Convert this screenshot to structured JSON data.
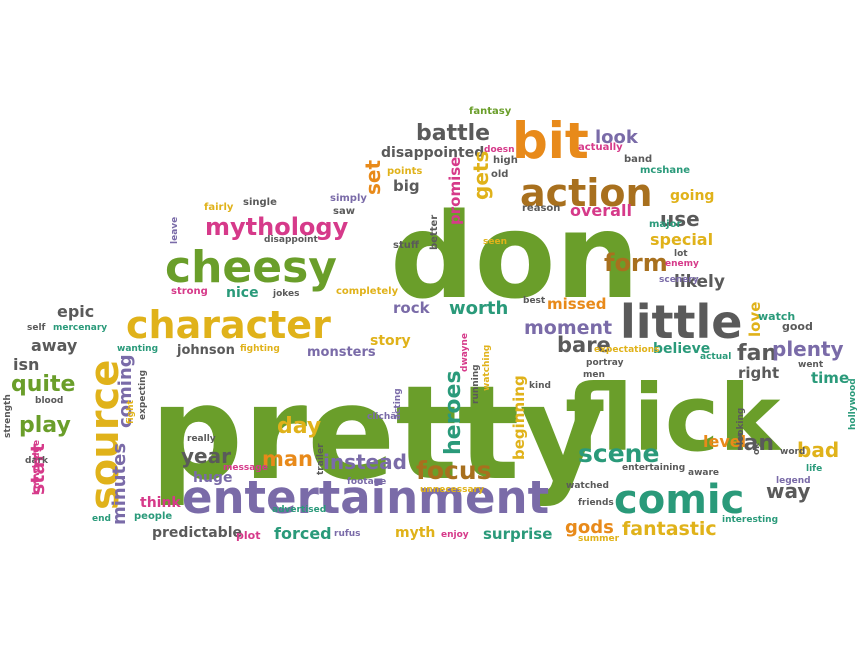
{
  "palette": {
    "green": "#6a9e2a",
    "purple": "#7a6ba8",
    "orange": "#e88a1a",
    "brown": "#a8701e",
    "gray": "#5a5a5a",
    "magenta": "#d63a8a",
    "yellow": "#e0b21a",
    "teal": "#2a9a7a",
    "red": "#d44a1a"
  },
  "words": [
    {
      "text": "pretty",
      "color": "green"
    },
    {
      "text": "flick",
      "color": "green"
    },
    {
      "text": "don",
      "color": "green"
    },
    {
      "text": "entertainment",
      "color": "purple"
    },
    {
      "text": "character",
      "color": "yellow"
    },
    {
      "text": "little",
      "color": "gray"
    },
    {
      "text": "comic",
      "color": "teal"
    },
    {
      "text": "cheesy",
      "color": "green"
    },
    {
      "text": "source",
      "color": "yellow"
    },
    {
      "text": "action",
      "color": "brown"
    },
    {
      "text": "bit",
      "color": "orange"
    },
    {
      "text": "mythology",
      "color": "magenta"
    },
    {
      "text": "battle",
      "color": "gray"
    },
    {
      "text": "disappointed",
      "color": "gray"
    },
    {
      "text": "form",
      "color": "brown"
    },
    {
      "text": "use",
      "color": "gray"
    },
    {
      "text": "special",
      "color": "yellow"
    },
    {
      "text": "likely",
      "color": "gray"
    },
    {
      "text": "worth",
      "color": "teal"
    },
    {
      "text": "rock",
      "color": "purple"
    },
    {
      "text": "moment",
      "color": "purple"
    },
    {
      "text": "bare",
      "color": "gray"
    },
    {
      "text": "heroes",
      "color": "teal"
    },
    {
      "text": "beginning",
      "color": "yellow"
    },
    {
      "text": "scene",
      "color": "teal"
    },
    {
      "text": "focus",
      "color": "brown"
    },
    {
      "text": "instead",
      "color": "purple"
    },
    {
      "text": "man",
      "color": "orange"
    },
    {
      "text": "day",
      "color": "yellow"
    },
    {
      "text": "year",
      "color": "gray"
    },
    {
      "text": "minutes",
      "color": "purple"
    },
    {
      "text": "coming",
      "color": "purple"
    },
    {
      "text": "play",
      "color": "green"
    },
    {
      "text": "quite",
      "color": "green"
    },
    {
      "text": "start",
      "color": "magenta"
    },
    {
      "text": "away",
      "color": "gray"
    },
    {
      "text": "isn",
      "color": "gray"
    },
    {
      "text": "epic",
      "color": "gray"
    },
    {
      "text": "gods",
      "color": "orange"
    },
    {
      "text": "fantastic",
      "color": "yellow"
    },
    {
      "text": "surprise",
      "color": "teal"
    },
    {
      "text": "forced",
      "color": "teal"
    },
    {
      "text": "predictable",
      "color": "gray"
    },
    {
      "text": "fan",
      "color": "gray"
    },
    {
      "text": "plenty",
      "color": "purple"
    },
    {
      "text": "ian",
      "color": "gray"
    },
    {
      "text": "way",
      "color": "gray"
    },
    {
      "text": "bad",
      "color": "yellow"
    },
    {
      "text": "time",
      "color": "teal"
    },
    {
      "text": "right",
      "color": "gray"
    },
    {
      "text": "love",
      "color": "yellow"
    },
    {
      "text": "watch",
      "color": "teal"
    },
    {
      "text": "good",
      "color": "gray"
    },
    {
      "text": "believe",
      "color": "teal"
    },
    {
      "text": "level",
      "color": "orange"
    },
    {
      "text": "gets",
      "color": "yellow"
    },
    {
      "text": "set",
      "color": "orange"
    },
    {
      "text": "promise",
      "color": "magenta"
    },
    {
      "text": "overall",
      "color": "magenta"
    },
    {
      "text": "look",
      "color": "purple"
    },
    {
      "text": "going",
      "color": "yellow"
    },
    {
      "text": "big",
      "color": "gray"
    },
    {
      "text": "missed",
      "color": "orange"
    },
    {
      "text": "story",
      "color": "yellow"
    },
    {
      "text": "monsters",
      "color": "purple"
    },
    {
      "text": "johnson",
      "color": "gray"
    },
    {
      "text": "nice",
      "color": "teal"
    },
    {
      "text": "think",
      "color": "magenta"
    },
    {
      "text": "huge",
      "color": "purple"
    },
    {
      "text": "myth",
      "color": "yellow"
    },
    {
      "text": "plot",
      "color": "magenta"
    },
    {
      "text": "people",
      "color": "teal"
    },
    {
      "text": "strong",
      "color": "magenta"
    },
    {
      "text": "fairly",
      "color": "yellow"
    },
    {
      "text": "single",
      "color": "gray"
    },
    {
      "text": "simply",
      "color": "purple"
    },
    {
      "text": "saw",
      "color": "gray"
    },
    {
      "text": "points",
      "color": "yellow"
    },
    {
      "text": "better",
      "color": "gray"
    },
    {
      "text": "reason",
      "color": "gray"
    },
    {
      "text": "major",
      "color": "teal"
    },
    {
      "text": "actually",
      "color": "magenta"
    },
    {
      "text": "band",
      "color": "gray"
    },
    {
      "text": "mcshane",
      "color": "teal"
    },
    {
      "text": "fantasy",
      "color": "green"
    },
    {
      "text": "high",
      "color": "gray"
    },
    {
      "text": "old",
      "color": "gray"
    },
    {
      "text": "doesn",
      "color": "magenta"
    },
    {
      "text": "lot",
      "color": "gray"
    },
    {
      "text": "enemy",
      "color": "magenta"
    },
    {
      "text": "scenery",
      "color": "purple"
    },
    {
      "text": "stuff",
      "color": "gray"
    },
    {
      "text": "seen",
      "color": "yellow"
    },
    {
      "text": "best",
      "color": "gray"
    },
    {
      "text": "completely",
      "color": "yellow"
    },
    {
      "text": "jokes",
      "color": "gray"
    },
    {
      "text": "disappoint",
      "color": "gray"
    },
    {
      "text": "leave",
      "color": "purple"
    },
    {
      "text": "mercenary",
      "color": "teal"
    },
    {
      "text": "self",
      "color": "gray"
    },
    {
      "text": "wanting",
      "color": "teal"
    },
    {
      "text": "fighting",
      "color": "yellow"
    },
    {
      "text": "blood",
      "color": "gray"
    },
    {
      "text": "strength",
      "color": "gray"
    },
    {
      "text": "dark",
      "color": "gray"
    },
    {
      "text": "knowledge",
      "color": "magenta"
    },
    {
      "text": "end",
      "color": "teal"
    },
    {
      "text": "really",
      "color": "gray"
    },
    {
      "text": "message",
      "color": "magenta"
    },
    {
      "text": "trailer",
      "color": "gray"
    },
    {
      "text": "fight",
      "color": "yellow"
    },
    {
      "text": "expecting",
      "color": "gray"
    },
    {
      "text": "advertised",
      "color": "teal"
    },
    {
      "text": "footage",
      "color": "purple"
    },
    {
      "text": "rufus",
      "color": "purple"
    },
    {
      "text": "clichã",
      "color": "purple"
    },
    {
      "text": "acting",
      "color": "purple"
    },
    {
      "text": "enjoy",
      "color": "magenta"
    },
    {
      "text": "unnecessary",
      "color": "yellow"
    },
    {
      "text": "dwayne",
      "color": "magenta"
    },
    {
      "text": "watching",
      "color": "yellow"
    },
    {
      "text": "running",
      "color": "gray"
    },
    {
      "text": "expectations",
      "color": "yellow"
    },
    {
      "text": "portray",
      "color": "gray"
    },
    {
      "text": "men",
      "color": "gray"
    },
    {
      "text": "kind",
      "color": "gray"
    },
    {
      "text": "watched",
      "color": "gray"
    },
    {
      "text": "friends",
      "color": "gray"
    },
    {
      "text": "summer",
      "color": "yellow"
    },
    {
      "text": "entertaining",
      "color": "gray"
    },
    {
      "text": "aware",
      "color": "gray"
    },
    {
      "text": "looking",
      "color": "gray"
    },
    {
      "text": "ok",
      "color": "gray"
    },
    {
      "text": "actual",
      "color": "teal"
    },
    {
      "text": "went",
      "color": "gray"
    },
    {
      "text": "word",
      "color": "gray"
    },
    {
      "text": "life",
      "color": "teal"
    },
    {
      "text": "legend",
      "color": "purple"
    },
    {
      "text": "interesting",
      "color": "teal"
    },
    {
      "text": "hollywood",
      "color": "teal"
    }
  ]
}
